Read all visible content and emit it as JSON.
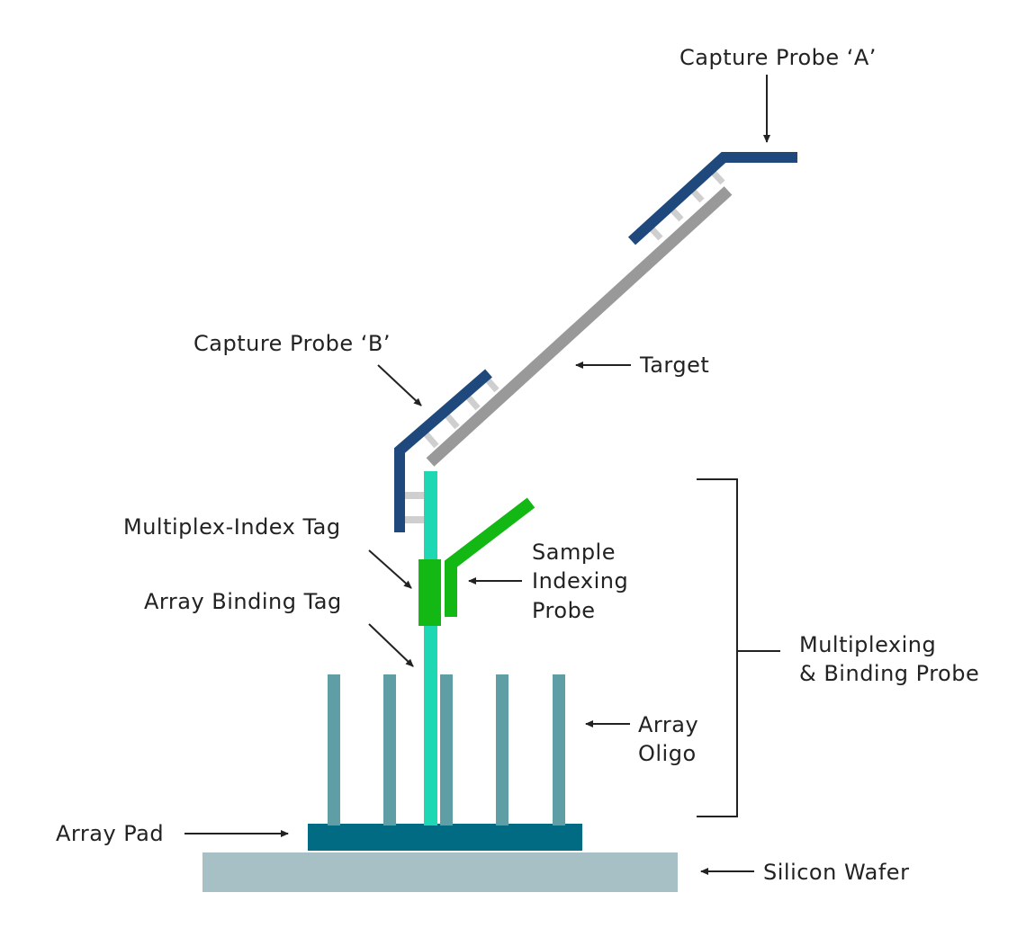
{
  "labels": {
    "capture_probe_a": "Capture Probe ‘A’",
    "capture_probe_b": "Capture Probe ‘B’",
    "target": "Target",
    "multiplex_index_tag": "Multiplex-Index Tag",
    "array_binding_tag": "Array Binding Tag",
    "sample_indexing_probe": [
      "Sample",
      "Indexing",
      "Probe"
    ],
    "multiplexing_binding_probe": [
      "Multiplexing",
      "& Binding Probe"
    ],
    "array_oligo": [
      "Array",
      "Oligo"
    ],
    "array_pad": "Array Pad",
    "silicon_wafer": "Silicon Wafer"
  },
  "colors": {
    "capture_probe": "#1f497d",
    "target": "#999999",
    "hybridization_rungs": "#cfcfcf",
    "binding_strand": "#1ed8b4",
    "index_tag": "#14b814",
    "array_oligo": "#5f9ea5",
    "array_pad": "#006b82",
    "silicon_wafer": "#a6c0c6",
    "text": "#222222"
  }
}
